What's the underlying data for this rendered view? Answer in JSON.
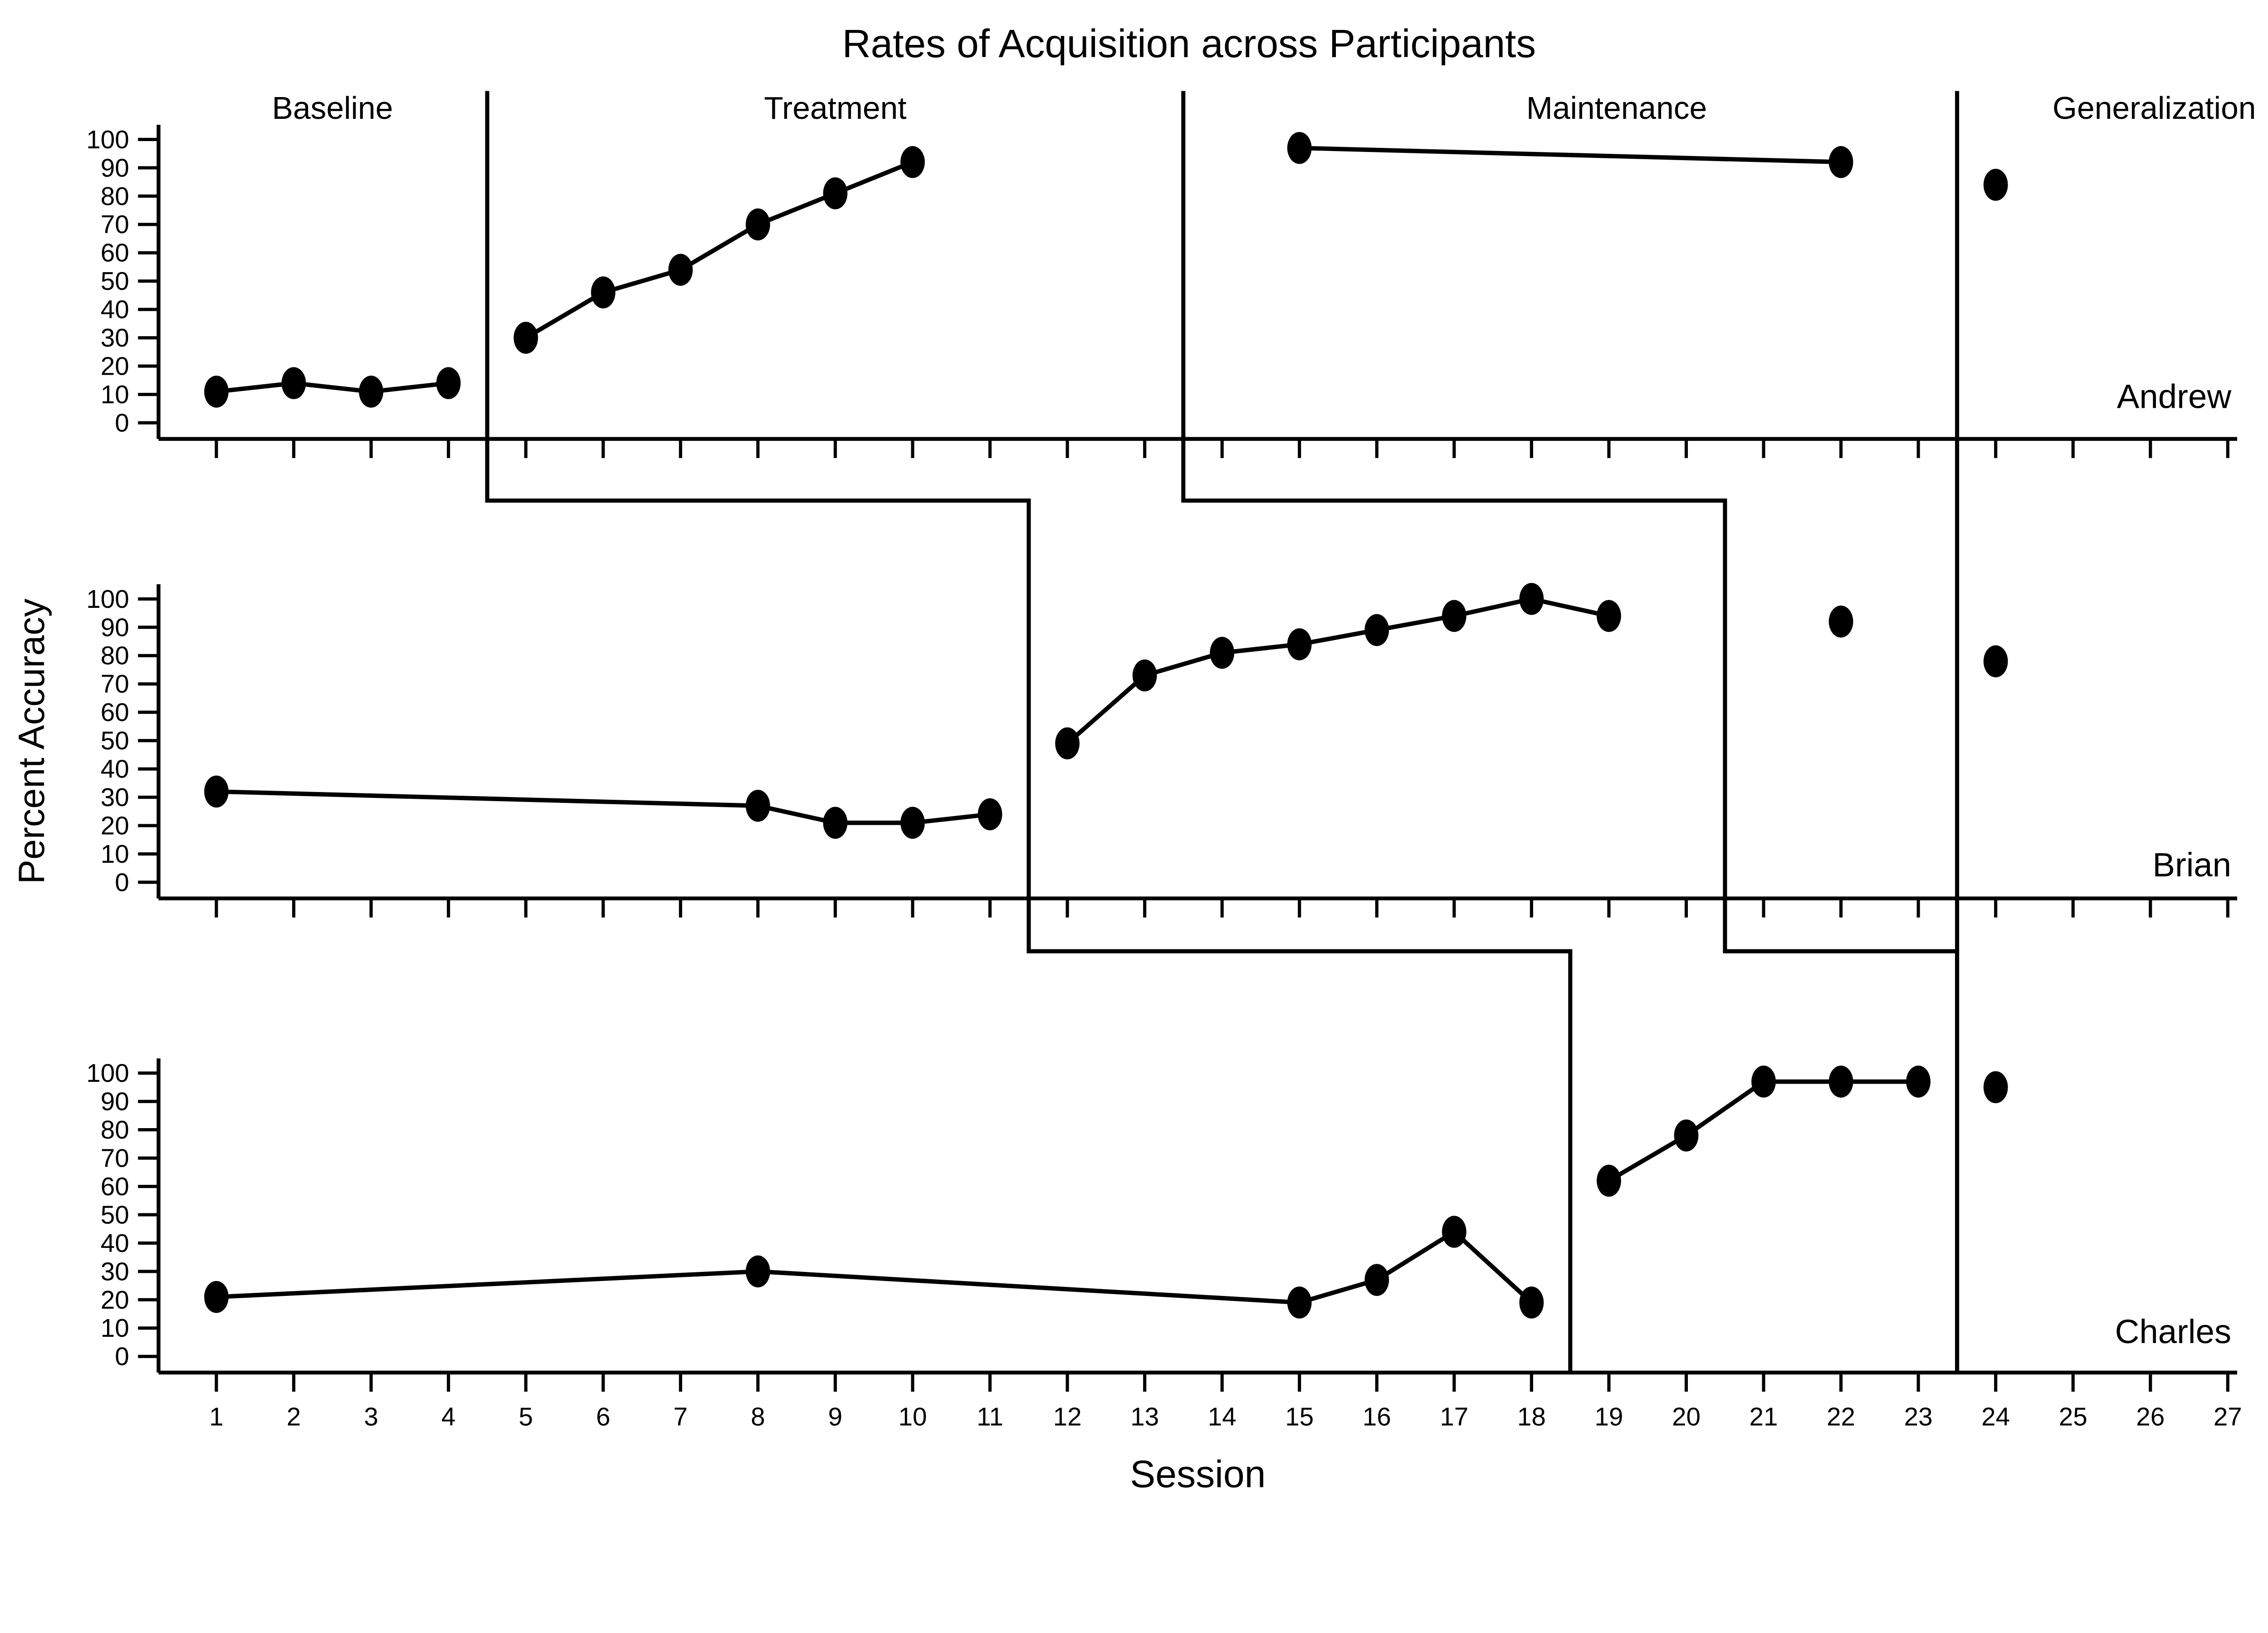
{
  "chart_data": {
    "type": "line",
    "title": "Rates of Acquisition across Participants",
    "xlabel": "Session",
    "ylabel": "Percent Accuracy",
    "ylim": [
      0,
      100
    ],
    "xlim": [
      0.3,
      27.6
    ],
    "grid": false,
    "legend_position": "none",
    "marker": "filled-black-ellipse",
    "line_color": "#000000",
    "background_color": "#ffffff",
    "x_ticks": [
      1,
      2,
      3,
      4,
      5,
      6,
      7,
      8,
      9,
      10,
      11,
      12,
      13,
      14,
      15,
      16,
      17,
      18,
      19,
      20,
      21,
      22,
      23,
      24,
      25,
      26,
      27
    ],
    "y_ticks": [
      0,
      10,
      20,
      30,
      40,
      50,
      60,
      70,
      80,
      90,
      100
    ],
    "phase_labels": [
      {
        "label": "Baseline",
        "x_session": 2.5
      },
      {
        "label": "Treatment",
        "x_session": 9.0
      },
      {
        "label": "Maintenance",
        "x_session": 19.1
      },
      {
        "label": "Generalization",
        "x_session": 26.05
      }
    ],
    "panels": [
      {
        "participant": "Andrew",
        "series": [
          {
            "phase": "Baseline",
            "points": [
              [
                1,
                11
              ],
              [
                2,
                14
              ],
              [
                3,
                11
              ],
              [
                4,
                14
              ]
            ]
          },
          {
            "phase": "Treatment",
            "points": [
              [
                5,
                30
              ],
              [
                6,
                46
              ],
              [
                7,
                54
              ],
              [
                8,
                70
              ],
              [
                9,
                81
              ],
              [
                10,
                92
              ]
            ]
          },
          {
            "phase": "Maintenance",
            "points": [
              [
                15,
                97
              ],
              [
                22,
                92
              ]
            ]
          },
          {
            "phase": "Generalization",
            "points": [
              [
                24,
                84
              ]
            ]
          }
        ]
      },
      {
        "participant": "Brian",
        "series": [
          {
            "phase": "Baseline",
            "points": [
              [
                1,
                32
              ],
              [
                8,
                27
              ],
              [
                9,
                21
              ],
              [
                10,
                21
              ],
              [
                11,
                24
              ]
            ]
          },
          {
            "phase": "Treatment",
            "points": [
              [
                12,
                49
              ],
              [
                13,
                73
              ],
              [
                14,
                81
              ],
              [
                15,
                84
              ],
              [
                16,
                89
              ],
              [
                17,
                94
              ],
              [
                18,
                100
              ],
              [
                19,
                94
              ]
            ]
          },
          {
            "phase": "Maintenance",
            "points": [
              [
                22,
                92
              ]
            ]
          },
          {
            "phase": "Generalization",
            "points": [
              [
                24,
                78
              ]
            ]
          }
        ]
      },
      {
        "participant": "Charles",
        "series": [
          {
            "phase": "Baseline",
            "points": [
              [
                1,
                21
              ],
              [
                8,
                30
              ],
              [
                15,
                19
              ],
              [
                16,
                27
              ],
              [
                17,
                44
              ],
              [
                18,
                19
              ]
            ]
          },
          {
            "phase": "Treatment",
            "points": [
              [
                19,
                62
              ],
              [
                20,
                78
              ],
              [
                21,
                97
              ],
              [
                22,
                97
              ],
              [
                23,
                97
              ]
            ]
          },
          {
            "phase": "Generalization",
            "points": [
              [
                24,
                95
              ]
            ]
          }
        ]
      }
    ],
    "phase_change_lines": [
      {
        "name": "baseline-to-treatment",
        "x_sessions_per_panel": [
          4.5,
          11.5,
          18.5
        ]
      },
      {
        "name": "treatment-to-maintenance",
        "x_sessions_per_panel": [
          13.5,
          20.5,
          23.5
        ]
      },
      {
        "name": "generalization",
        "x_sessions_per_panel": [
          23.5,
          23.5,
          23.5
        ]
      }
    ]
  }
}
